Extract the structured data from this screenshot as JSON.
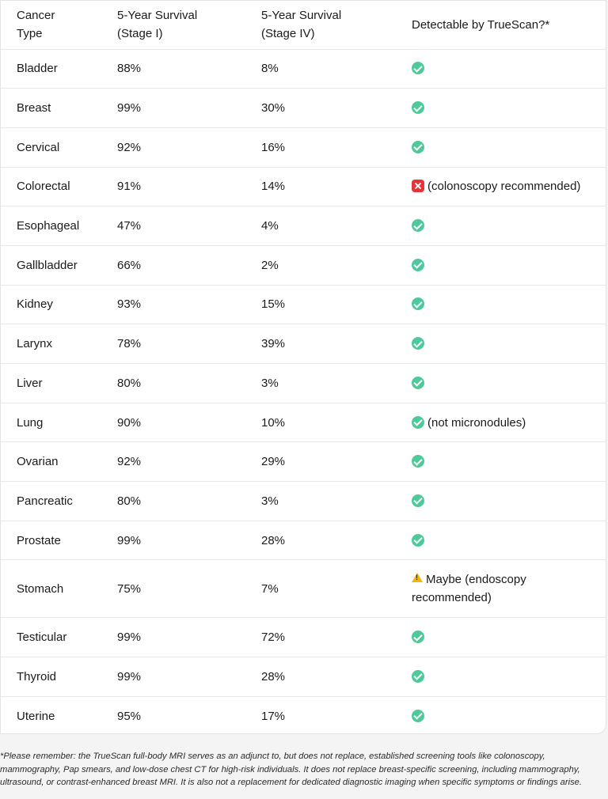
{
  "table": {
    "headers": [
      "Cancer\nType",
      "5-Year Survival\n(Stage I)",
      "5-Year Survival\n(Stage IV)",
      "Detectable by TrueScan?*"
    ],
    "rows": [
      {
        "type": "Bladder",
        "stage1": "88%",
        "stage4": "8%",
        "status": "check",
        "note": ""
      },
      {
        "type": "Breast",
        "stage1": "99%",
        "stage4": "30%",
        "status": "check",
        "note": ""
      },
      {
        "type": "Cervical",
        "stage1": "92%",
        "stage4": "16%",
        "status": "check",
        "note": ""
      },
      {
        "type": "Colorectal",
        "stage1": "91%",
        "stage4": "14%",
        "status": "cross",
        "note": "(colonoscopy recommended)"
      },
      {
        "type": "Esophageal",
        "stage1": "47%",
        "stage4": "4%",
        "status": "check",
        "note": ""
      },
      {
        "type": "Gallbladder",
        "stage1": "66%",
        "stage4": "2%",
        "status": "check",
        "note": ""
      },
      {
        "type": "Kidney",
        "stage1": "93%",
        "stage4": "15%",
        "status": "check",
        "note": ""
      },
      {
        "type": "Larynx",
        "stage1": "78%",
        "stage4": "39%",
        "status": "check",
        "note": ""
      },
      {
        "type": "Liver",
        "stage1": "80%",
        "stage4": "3%",
        "status": "check",
        "note": ""
      },
      {
        "type": "Lung",
        "stage1": "90%",
        "stage4": "10%",
        "status": "check",
        "note": "(not micronodules)"
      },
      {
        "type": "Ovarian",
        "stage1": "92%",
        "stage4": "29%",
        "status": "check",
        "note": ""
      },
      {
        "type": "Pancreatic",
        "stage1": "80%",
        "stage4": "3%",
        "status": "check",
        "note": ""
      },
      {
        "type": "Prostate",
        "stage1": "99%",
        "stage4": "28%",
        "status": "check",
        "note": ""
      },
      {
        "type": "Stomach",
        "stage1": "75%",
        "stage4": "7%",
        "status": "warn",
        "note": "Maybe (endoscopy\nrecommended)"
      },
      {
        "type": "Testicular",
        "stage1": "99%",
        "stage4": "72%",
        "status": "check",
        "note": ""
      },
      {
        "type": "Thyroid",
        "stage1": "99%",
        "stage4": "28%",
        "status": "check",
        "note": ""
      },
      {
        "type": "Uterine",
        "stage1": "95%",
        "stage4": "17%",
        "status": "check",
        "note": ""
      }
    ]
  },
  "footnote": "*Please remember: the TrueScan full-body MRI serves as an adjunct to, but does not replace, established screening tools like colonoscopy, mammography, Pap smears, and low-dose chest CT for high-risk individuals. It does not replace breast-specific screening, including mammography, ultrasound, or contrast-enhanced breast MRI. It is also not a replacement for dedicated diagnostic imaging when specific symptoms or findings arise.",
  "colors": {
    "check": "#4fc99b",
    "cross": "#e5323b",
    "warn": "#f2b705"
  },
  "icons": {
    "check": "check-circle-icon",
    "cross": "cross-square-icon",
    "warn": "warning-triangle-icon"
  }
}
